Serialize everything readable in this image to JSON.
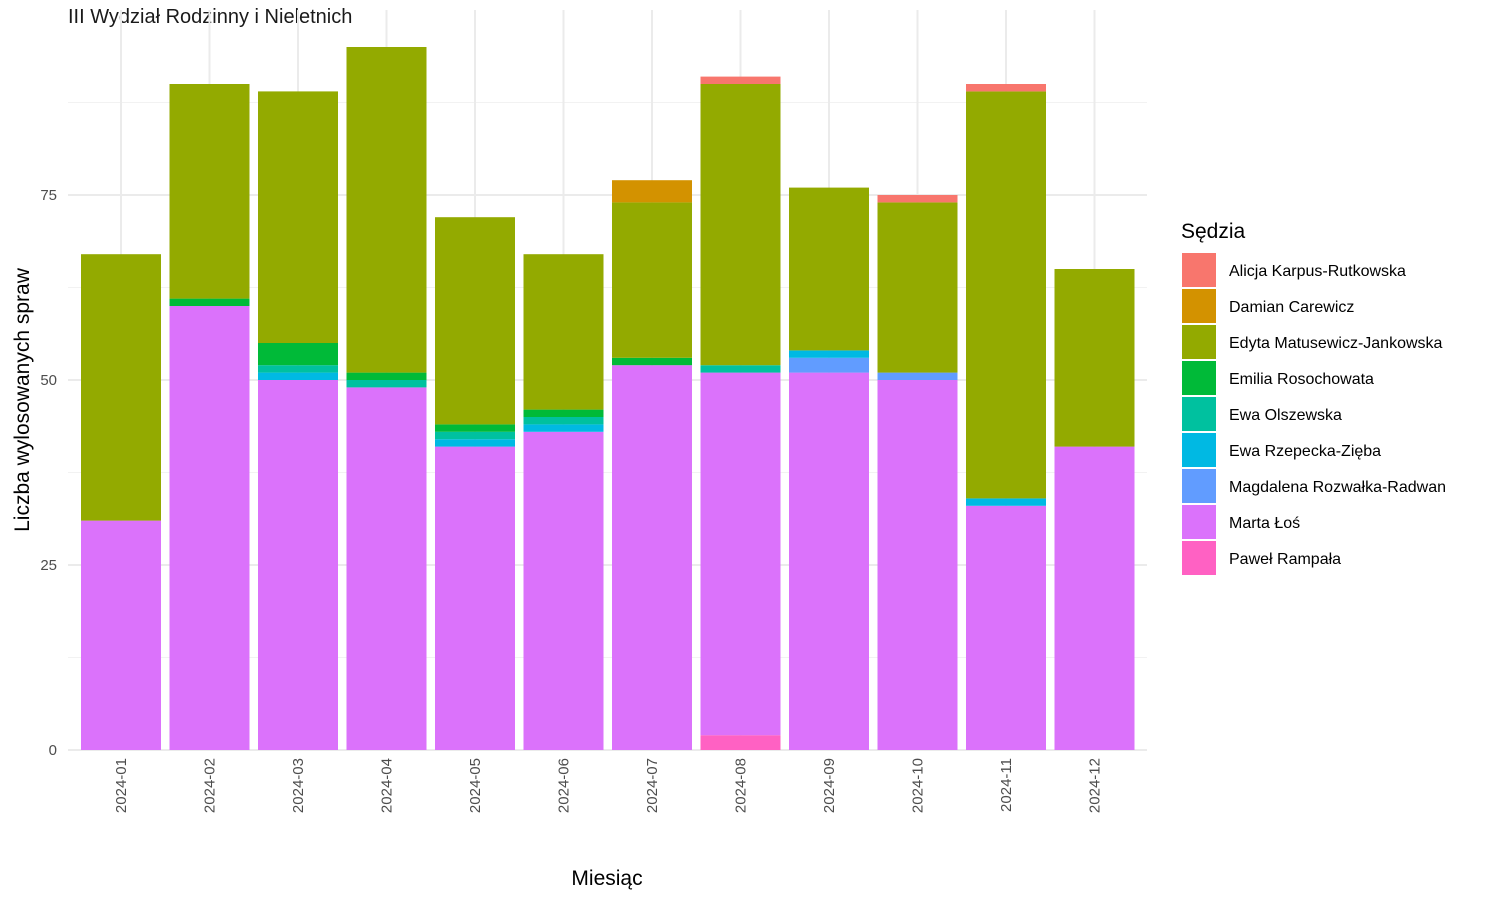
{
  "chart_data": {
    "type": "bar",
    "stacked": true,
    "title": "III Wydział Rodzinny i Nieletnich",
    "xlabel": "Miesiąc",
    "ylabel": "Liczba wylosowanych spraw",
    "legend_title": "Sędzia",
    "legend_position": "right",
    "grid": true,
    "ylim": [
      0,
      100
    ],
    "yticks": [
      0,
      25,
      50,
      75
    ],
    "categories": [
      "2024-01",
      "2024-02",
      "2024-03",
      "2024-04",
      "2024-05",
      "2024-06",
      "2024-07",
      "2024-08",
      "2024-09",
      "2024-10",
      "2024-11",
      "2024-12"
    ],
    "series": [
      {
        "name": "Paweł Rampała",
        "color": "#FF61C3",
        "values": [
          0,
          0,
          0,
          0,
          0,
          0,
          0,
          2,
          0,
          0,
          0,
          0
        ]
      },
      {
        "name": "Marta Łoś",
        "color": "#DB72FB",
        "values": [
          31,
          60,
          50,
          49,
          41,
          43,
          52,
          49,
          51,
          50,
          33,
          41
        ]
      },
      {
        "name": "Magdalena Rozwałka-Radwan",
        "color": "#619CFF",
        "values": [
          0,
          0,
          0,
          0,
          0,
          0,
          0,
          0,
          2,
          1,
          0,
          0
        ]
      },
      {
        "name": "Ewa Rzepecka-Zięba",
        "color": "#00B9E3",
        "values": [
          0,
          0,
          1,
          0,
          1,
          1,
          0,
          0,
          1,
          0,
          1,
          0
        ]
      },
      {
        "name": "Ewa Olszewska",
        "color": "#00C19F",
        "values": [
          0,
          0,
          1,
          1,
          1,
          1,
          0,
          1,
          0,
          0,
          0,
          0
        ]
      },
      {
        "name": "Emilia Rosochowata",
        "color": "#00BA38",
        "values": [
          0,
          1,
          3,
          1,
          1,
          1,
          1,
          0,
          0,
          0,
          0,
          0
        ]
      },
      {
        "name": "Edyta Matusewicz-Jankowska",
        "color": "#93AA00",
        "values": [
          36,
          29,
          34,
          44,
          28,
          21,
          21,
          38,
          22,
          23,
          55,
          24
        ]
      },
      {
        "name": "Damian Carewicz",
        "color": "#D39200",
        "values": [
          0,
          0,
          0,
          0,
          0,
          0,
          3,
          0,
          0,
          0,
          0,
          0
        ]
      },
      {
        "name": "Alicja Karpus-Rutkowska",
        "color": "#F8766D",
        "values": [
          0,
          0,
          0,
          0,
          0,
          0,
          0,
          1,
          0,
          1,
          1,
          0
        ]
      }
    ],
    "legend_order": [
      "Alicja Karpus-Rutkowska",
      "Damian Carewicz",
      "Edyta Matusewicz-Jankowska",
      "Emilia Rosochowata",
      "Ewa Olszewska",
      "Ewa Rzepecka-Zięba",
      "Magdalena Rozwałka-Radwan",
      "Marta Łoś",
      "Paweł Rampała"
    ]
  }
}
